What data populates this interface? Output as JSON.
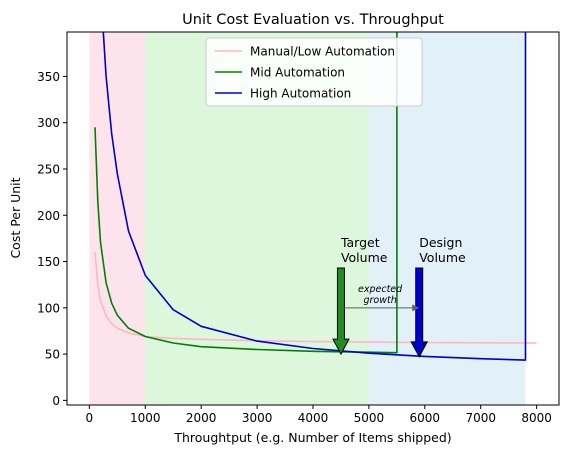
{
  "chart_data": {
    "type": "line",
    "title": "Unit Cost Evaluation vs. Throughput",
    "xlabel": "Throughtput (e.g. Number of Items shipped)",
    "ylabel": "Cost Per Unit",
    "xlim": [
      -400,
      8400
    ],
    "ylim": [
      -5,
      398
    ],
    "xticks": [
      0,
      1000,
      2000,
      3000,
      4000,
      5000,
      6000,
      7000,
      8000
    ],
    "yticks": [
      0,
      50,
      100,
      150,
      200,
      250,
      300,
      350
    ],
    "regions": [
      {
        "x0": 0,
        "x1": 1000,
        "color": "#fde4ec"
      },
      {
        "x0": 1000,
        "x1": 5000,
        "color": "#dcf7dc"
      },
      {
        "x0": 5000,
        "x1": 7800,
        "color": "#e2f0f8"
      }
    ],
    "series": [
      {
        "name": "Manual/Low Automation",
        "color": "#ffb6c1",
        "x": [
          100,
          150,
          200,
          300,
          400,
          500,
          700,
          1000,
          1500,
          2000,
          3000,
          4000,
          5000,
          6000,
          7000,
          8000
        ],
        "y": [
          160,
          125,
          108,
          91,
          83,
          78,
          73,
          69,
          67,
          66,
          64.5,
          63.5,
          63,
          62.5,
          62.2,
          62
        ]
      },
      {
        "name": "Mid Automation",
        "color": "#008000",
        "x": [
          100,
          150,
          200,
          300,
          400,
          500,
          700,
          1000,
          1500,
          2000,
          3000,
          4000,
          4500,
          5000,
          5480,
          5500,
          5500
        ],
        "y": [
          295,
          215,
          171,
          127,
          105,
          92,
          78,
          69,
          62,
          58,
          55,
          53,
          52.5,
          52,
          51.5,
          51.5,
          398
        ]
      },
      {
        "name": "High Automation",
        "color": "#0000cd",
        "x": [
          250,
          300,
          400,
          500,
          700,
          1000,
          1500,
          2000,
          3000,
          4000,
          5000,
          6000,
          7000,
          7780,
          7800,
          7800
        ],
        "y": [
          398,
          350,
          288,
          245,
          183,
          135,
          98,
          80,
          64,
          56,
          51,
          47.5,
          45,
          43.5,
          43.5,
          398
        ]
      }
    ],
    "annotations": [
      {
        "label_lines": [
          "Target",
          "Volume"
        ],
        "x": 4500,
        "y_start": 143,
        "y_end": 50,
        "color": "#228b22"
      },
      {
        "label_lines": [
          "Design",
          "Volume"
        ],
        "x": 5900,
        "y_start": 143,
        "y_end": 47,
        "color": "#0000cd"
      }
    ],
    "growth_arrow": {
      "x0": 4500,
      "x1": 5900,
      "y": 100,
      "label_lines": [
        "expected",
        "growth"
      ]
    },
    "legend": {
      "position": "top-center"
    }
  }
}
